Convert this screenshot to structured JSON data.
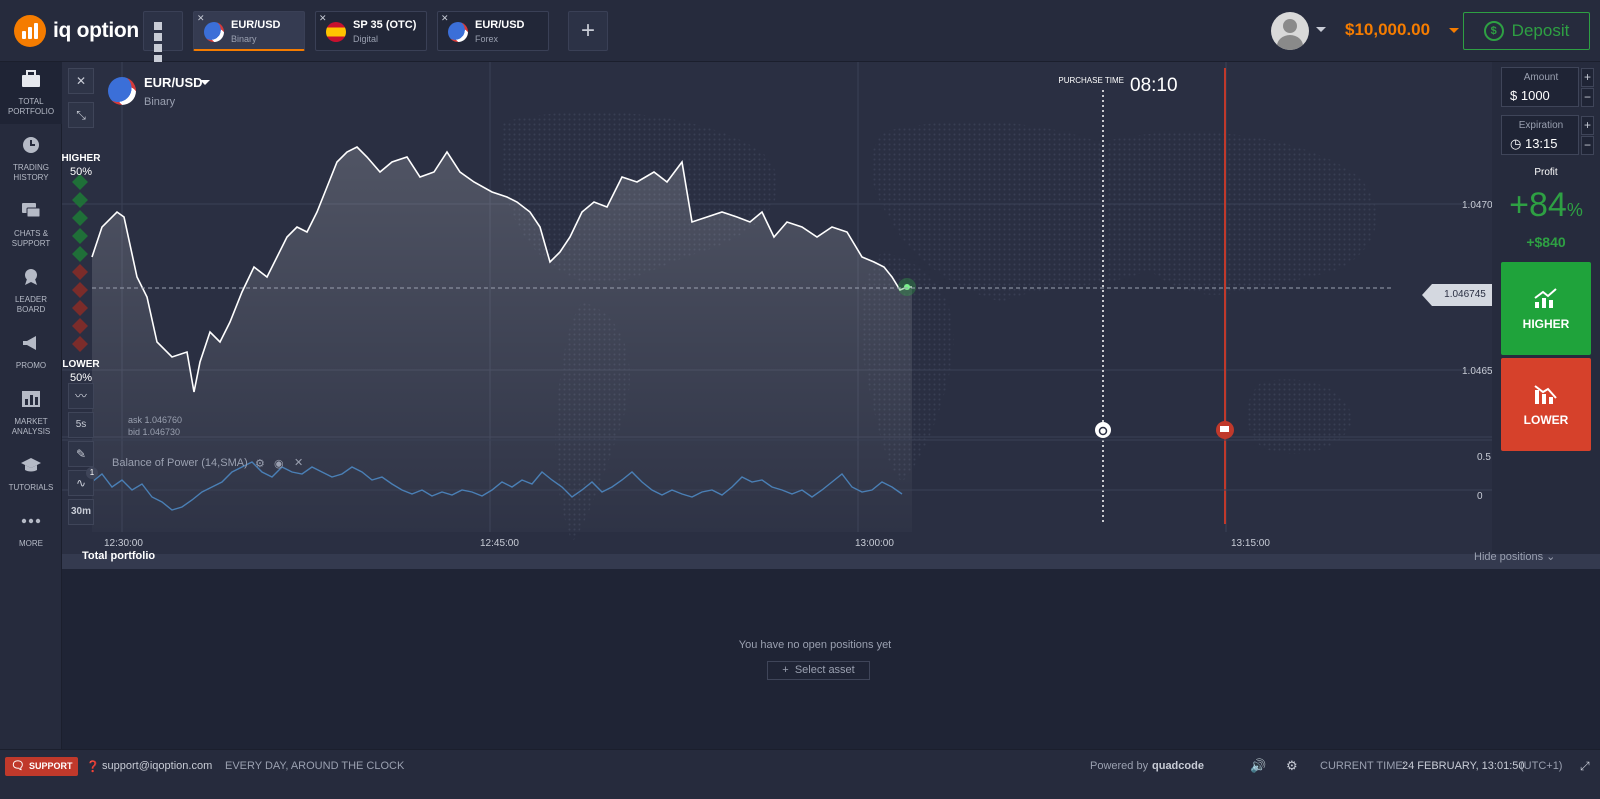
{
  "brand": {
    "name": "iq option"
  },
  "tabs": [
    {
      "name": "EUR/USD",
      "type": "Binary",
      "active": true
    },
    {
      "name": "SP 35 (OTC)",
      "type": "Digital",
      "active": false
    },
    {
      "name": "EUR/USD",
      "type": "Forex",
      "active": false
    }
  ],
  "account": {
    "balance": "$10,000.00",
    "deposit_label": "Deposit",
    "deposit_icon": "$"
  },
  "sidebar": {
    "items": [
      {
        "label": "TOTAL PORTFOLIO",
        "icon": "briefcase-icon"
      },
      {
        "label": "TRADING HISTORY",
        "icon": "clock-icon"
      },
      {
        "label": "CHATS & SUPPORT",
        "icon": "chat-icon"
      },
      {
        "label": "LEADER BOARD",
        "icon": "medal-icon"
      },
      {
        "label": "PROMO",
        "icon": "megaphone-icon"
      },
      {
        "label": "MARKET ANALYSIS",
        "icon": "chart-icon"
      },
      {
        "label": "TUTORIALS",
        "icon": "graduation-cap-icon"
      },
      {
        "label": "MORE",
        "icon": "dots-icon"
      }
    ]
  },
  "chart_header": {
    "asset": "EUR/USD",
    "type": "Binary",
    "purchase_time_label": "PURCHASE TIME",
    "purchase_time": "08:10"
  },
  "sentiment": {
    "higher_label": "HIGHER",
    "higher_pct": "50%",
    "lower_label": "LOWER",
    "lower_pct": "50%"
  },
  "quote": {
    "ask": "ask 1.046760",
    "bid": "bid 1.046730",
    "current": "1.046745"
  },
  "toolbar": {
    "interval": "5s",
    "timeframe": "30m",
    "indicator_count": "1"
  },
  "indicator": {
    "label": "Balance of Power (14,SMA)"
  },
  "chart_data": {
    "type": "line",
    "xlabels": [
      "12:30:00",
      "12:45:00",
      "13:00:00",
      "13:15:00"
    ],
    "yticks": [
      "1.0470",
      "1.0465"
    ],
    "indicator_ticks": [
      "0.5",
      "0"
    ]
  },
  "trade": {
    "amount_label": "Amount",
    "amount_currency": "$",
    "amount": "1000",
    "expiration_label": "Expiration",
    "expiration": "13:15",
    "profit_label": "Profit",
    "profit_pct": "+84",
    "profit_pct_unit": "%",
    "profit_amount": "+$840",
    "higher_label": "HIGHER",
    "lower_label": "LOWER"
  },
  "portfolio": {
    "title": "Total portfolio",
    "hide_label": "Hide positions",
    "empty_text": "You have no open positions yet",
    "select_asset": "Select asset"
  },
  "footer": {
    "support_label": "SUPPORT",
    "email": "support@iqoption.com",
    "hours": "EVERY DAY, AROUND THE CLOCK",
    "powered_by": "Powered by",
    "powered_brand": "quadcode",
    "current_time_label": "CURRENT TIME:",
    "current_time": "24 FEBRUARY, 13:01:50",
    "timezone": "(UTC+1)"
  }
}
